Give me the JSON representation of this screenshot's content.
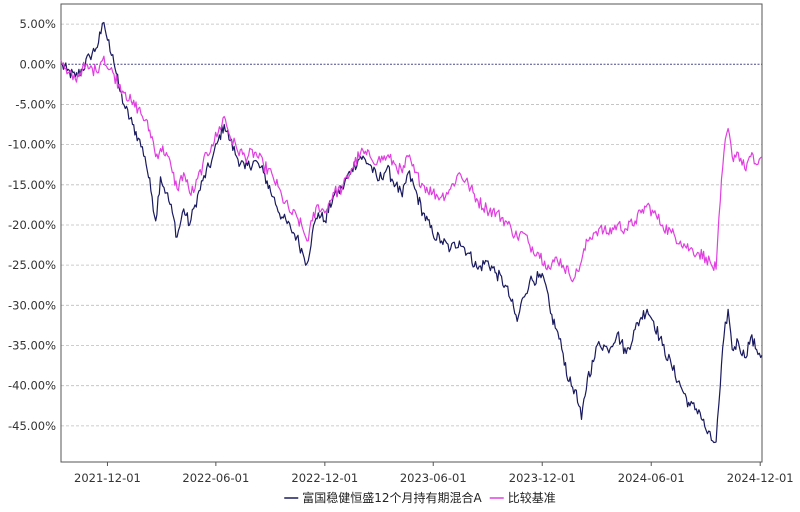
{
  "chart_data": {
    "type": "line",
    "title": "",
    "xlabel": "",
    "ylabel": "",
    "x_ticks": [
      "2021-12-01",
      "2022-06-01",
      "2022-12-01",
      "2023-06-01",
      "2023-12-01",
      "2024-06-01",
      "2024-12-01"
    ],
    "y_ticks": [
      5,
      0,
      -5,
      -10,
      -15,
      -20,
      -25,
      -30,
      -35,
      -40,
      -45
    ],
    "y_tick_labels": [
      "5.00%",
      "0.00%",
      "-5.00%",
      "-10.00%",
      "-15.00%",
      "-20.00%",
      "-25.00%",
      "-30.00%",
      "-35.00%",
      "-40.00%",
      "-45.00%"
    ],
    "xlim": [
      "2021-09-14",
      "2024-12-04"
    ],
    "ylim": [
      -49.5,
      7.5
    ],
    "grid": true,
    "legend_position": "bottom",
    "series": [
      {
        "name": "富国稳健恒盛12个月持有期混合A",
        "color": "#1a1a5e",
        "points": [
          [
            "2021-09-14",
            0.0
          ],
          [
            "2021-09-24",
            -0.8
          ],
          [
            "2021-10-08",
            -1.6
          ],
          [
            "2021-10-20",
            -0.6
          ],
          [
            "2021-11-01",
            1.0
          ],
          [
            "2021-11-12",
            2.0
          ],
          [
            "2021-11-20",
            3.8
          ],
          [
            "2021-11-25",
            5.2
          ],
          [
            "2021-12-01",
            3.0
          ],
          [
            "2021-12-10",
            1.2
          ],
          [
            "2021-12-20",
            -2.8
          ],
          [
            "2021-12-31",
            -5.5
          ],
          [
            "2022-01-12",
            -7.5
          ],
          [
            "2022-01-22",
            -9.2
          ],
          [
            "2022-02-02",
            -11.5
          ],
          [
            "2022-02-14",
            -16.5
          ],
          [
            "2022-02-20",
            -19.5
          ],
          [
            "2022-02-28",
            -14.0
          ],
          [
            "2022-03-10",
            -16.0
          ],
          [
            "2022-03-20",
            -18.5
          ],
          [
            "2022-03-28",
            -21.5
          ],
          [
            "2022-04-08",
            -18.0
          ],
          [
            "2022-04-18",
            -20.0
          ],
          [
            "2022-04-27",
            -17.5
          ],
          [
            "2022-05-10",
            -14.5
          ],
          [
            "2022-05-25",
            -12.0
          ],
          [
            "2022-06-05",
            -9.5
          ],
          [
            "2022-06-15",
            -7.5
          ],
          [
            "2022-06-25",
            -9.5
          ],
          [
            "2022-07-06",
            -11.5
          ],
          [
            "2022-07-20",
            -13.0
          ],
          [
            "2022-08-05",
            -12.0
          ],
          [
            "2022-08-20",
            -13.5
          ],
          [
            "2022-09-05",
            -16.5
          ],
          [
            "2022-09-20",
            -19.0
          ],
          [
            "2022-10-05",
            -20.5
          ],
          [
            "2022-10-15",
            -21.5
          ],
          [
            "2022-10-25",
            -23.5
          ],
          [
            "2022-11-01",
            -24.8
          ],
          [
            "2022-11-10",
            -21.0
          ],
          [
            "2022-11-20",
            -18.5
          ],
          [
            "2022-12-01",
            -19.5
          ],
          [
            "2022-12-15",
            -16.5
          ],
          [
            "2022-12-30",
            -15.5
          ],
          [
            "2023-01-15",
            -13.0
          ],
          [
            "2023-01-30",
            -11.5
          ],
          [
            "2023-02-15",
            -12.5
          ],
          [
            "2023-02-28",
            -14.5
          ],
          [
            "2023-03-15",
            -13.0
          ],
          [
            "2023-03-30",
            -15.0
          ],
          [
            "2023-04-10",
            -16.5
          ],
          [
            "2023-04-20",
            -13.5
          ],
          [
            "2023-05-01",
            -15.5
          ],
          [
            "2023-05-15",
            -18.5
          ],
          [
            "2023-05-31",
            -21.0
          ],
          [
            "2023-06-15",
            -22.0
          ],
          [
            "2023-06-30",
            -23.0
          ],
          [
            "2023-07-15",
            -22.0
          ],
          [
            "2023-07-30",
            -23.5
          ],
          [
            "2023-08-15",
            -25.5
          ],
          [
            "2023-08-30",
            -24.5
          ],
          [
            "2023-09-15",
            -26.0
          ],
          [
            "2023-09-30",
            -27.5
          ],
          [
            "2023-10-10",
            -29.5
          ],
          [
            "2023-10-20",
            -32.0
          ],
          [
            "2023-10-30",
            -29.0
          ],
          [
            "2023-11-10",
            -27.0
          ],
          [
            "2023-11-25",
            -26.5
          ],
          [
            "2023-12-05",
            -27.0
          ],
          [
            "2023-12-15",
            -31.0
          ],
          [
            "2023-12-25",
            -33.0
          ],
          [
            "2024-01-05",
            -36.0
          ],
          [
            "2024-01-15",
            -39.5
          ],
          [
            "2024-01-25",
            -40.5
          ],
          [
            "2024-02-05",
            -44.2
          ],
          [
            "2024-02-15",
            -39.0
          ],
          [
            "2024-02-25",
            -37.0
          ],
          [
            "2024-03-05",
            -34.5
          ],
          [
            "2024-03-20",
            -35.5
          ],
          [
            "2024-04-05",
            -33.5
          ],
          [
            "2024-04-20",
            -36.0
          ],
          [
            "2024-05-05",
            -33.0
          ],
          [
            "2024-05-15",
            -31.5
          ],
          [
            "2024-05-25",
            -30.5
          ],
          [
            "2024-06-05",
            -32.0
          ],
          [
            "2024-06-20",
            -35.0
          ],
          [
            "2024-07-05",
            -37.5
          ],
          [
            "2024-07-20",
            -40.0
          ],
          [
            "2024-08-05",
            -42.5
          ],
          [
            "2024-08-20",
            -43.0
          ],
          [
            "2024-09-01",
            -45.5
          ],
          [
            "2024-09-10",
            -46.8
          ],
          [
            "2024-09-18",
            -47.0
          ],
          [
            "2024-09-25",
            -40.0
          ],
          [
            "2024-10-01",
            -34.0
          ],
          [
            "2024-10-08",
            -30.5
          ],
          [
            "2024-10-15",
            -35.5
          ],
          [
            "2024-10-25",
            -34.5
          ],
          [
            "2024-11-05",
            -36.5
          ],
          [
            "2024-11-15",
            -34.0
          ],
          [
            "2024-11-25",
            -35.5
          ],
          [
            "2024-12-04",
            -36.2
          ]
        ]
      },
      {
        "name": "比较基准",
        "color": "#e040e0",
        "points": [
          [
            "2021-09-14",
            0.5
          ],
          [
            "2021-09-24",
            -1.2
          ],
          [
            "2021-10-08",
            -1.8
          ],
          [
            "2021-10-20",
            -0.5
          ],
          [
            "2021-11-01",
            -0.5
          ],
          [
            "2021-11-12",
            -0.8
          ],
          [
            "2021-11-20",
            0.3
          ],
          [
            "2021-11-25",
            1.0
          ],
          [
            "2021-12-01",
            -0.5
          ],
          [
            "2021-12-10",
            -1.0
          ],
          [
            "2021-12-20",
            -2.5
          ],
          [
            "2021-12-31",
            -3.5
          ],
          [
            "2022-01-12",
            -5.0
          ],
          [
            "2022-01-22",
            -5.5
          ],
          [
            "2022-02-02",
            -7.0
          ],
          [
            "2022-02-14",
            -9.0
          ],
          [
            "2022-02-20",
            -11.5
          ],
          [
            "2022-02-28",
            -10.5
          ],
          [
            "2022-03-10",
            -11.0
          ],
          [
            "2022-03-20",
            -13.5
          ],
          [
            "2022-03-28",
            -15.5
          ],
          [
            "2022-04-08",
            -13.5
          ],
          [
            "2022-04-18",
            -16.0
          ],
          [
            "2022-04-27",
            -15.5
          ],
          [
            "2022-05-10",
            -12.5
          ],
          [
            "2022-05-25",
            -10.0
          ],
          [
            "2022-06-05",
            -8.5
          ],
          [
            "2022-06-15",
            -6.5
          ],
          [
            "2022-06-25",
            -9.0
          ],
          [
            "2022-07-06",
            -10.5
          ],
          [
            "2022-07-20",
            -11.5
          ],
          [
            "2022-08-05",
            -11.0
          ],
          [
            "2022-08-20",
            -12.5
          ],
          [
            "2022-09-05",
            -14.0
          ],
          [
            "2022-09-20",
            -16.5
          ],
          [
            "2022-10-05",
            -18.5
          ],
          [
            "2022-10-15",
            -19.0
          ],
          [
            "2022-10-25",
            -20.5
          ],
          [
            "2022-11-01",
            -22.0
          ],
          [
            "2022-11-10",
            -19.5
          ],
          [
            "2022-11-20",
            -17.5
          ],
          [
            "2022-12-01",
            -18.5
          ],
          [
            "2022-12-15",
            -16.0
          ],
          [
            "2022-12-30",
            -15.5
          ],
          [
            "2023-01-15",
            -13.0
          ],
          [
            "2023-01-30",
            -11.0
          ],
          [
            "2023-02-15",
            -11.5
          ],
          [
            "2023-02-28",
            -12.0
          ],
          [
            "2023-03-15",
            -11.5
          ],
          [
            "2023-03-30",
            -12.5
          ],
          [
            "2023-04-10",
            -13.5
          ],
          [
            "2023-04-20",
            -11.5
          ],
          [
            "2023-05-01",
            -13.5
          ],
          [
            "2023-05-15",
            -15.0
          ],
          [
            "2023-05-31",
            -16.0
          ],
          [
            "2023-06-15",
            -16.5
          ],
          [
            "2023-06-30",
            -15.5
          ],
          [
            "2023-07-15",
            -13.5
          ],
          [
            "2023-07-30",
            -15.0
          ],
          [
            "2023-08-15",
            -17.0
          ],
          [
            "2023-08-30",
            -18.0
          ],
          [
            "2023-09-15",
            -18.5
          ],
          [
            "2023-09-30",
            -19.5
          ],
          [
            "2023-10-10",
            -20.5
          ],
          [
            "2023-10-20",
            -21.5
          ],
          [
            "2023-10-30",
            -21.0
          ],
          [
            "2023-11-10",
            -22.5
          ],
          [
            "2023-11-25",
            -23.5
          ],
          [
            "2023-12-05",
            -24.5
          ],
          [
            "2023-12-15",
            -25.5
          ],
          [
            "2023-12-25",
            -24.0
          ],
          [
            "2024-01-05",
            -25.0
          ],
          [
            "2024-01-15",
            -26.0
          ],
          [
            "2024-01-25",
            -26.5
          ],
          [
            "2024-02-05",
            -24.5
          ],
          [
            "2024-02-15",
            -22.0
          ],
          [
            "2024-02-25",
            -21.0
          ],
          [
            "2024-03-05",
            -20.5
          ],
          [
            "2024-03-20",
            -21.0
          ],
          [
            "2024-04-05",
            -20.0
          ],
          [
            "2024-04-20",
            -20.5
          ],
          [
            "2024-05-05",
            -19.5
          ],
          [
            "2024-05-15",
            -18.5
          ],
          [
            "2024-05-25",
            -17.5
          ],
          [
            "2024-06-05",
            -18.5
          ],
          [
            "2024-06-20",
            -20.0
          ],
          [
            "2024-07-05",
            -21.0
          ],
          [
            "2024-07-20",
            -22.0
          ],
          [
            "2024-08-05",
            -23.0
          ],
          [
            "2024-08-20",
            -23.5
          ],
          [
            "2024-09-01",
            -24.0
          ],
          [
            "2024-09-10",
            -25.0
          ],
          [
            "2024-09-18",
            -25.5
          ],
          [
            "2024-09-25",
            -17.0
          ],
          [
            "2024-10-01",
            -11.0
          ],
          [
            "2024-10-08",
            -8.0
          ],
          [
            "2024-10-15",
            -11.5
          ],
          [
            "2024-10-25",
            -11.0
          ],
          [
            "2024-11-05",
            -13.0
          ],
          [
            "2024-11-15",
            -11.5
          ],
          [
            "2024-11-25",
            -12.5
          ],
          [
            "2024-12-04",
            -11.5
          ]
        ]
      }
    ]
  }
}
